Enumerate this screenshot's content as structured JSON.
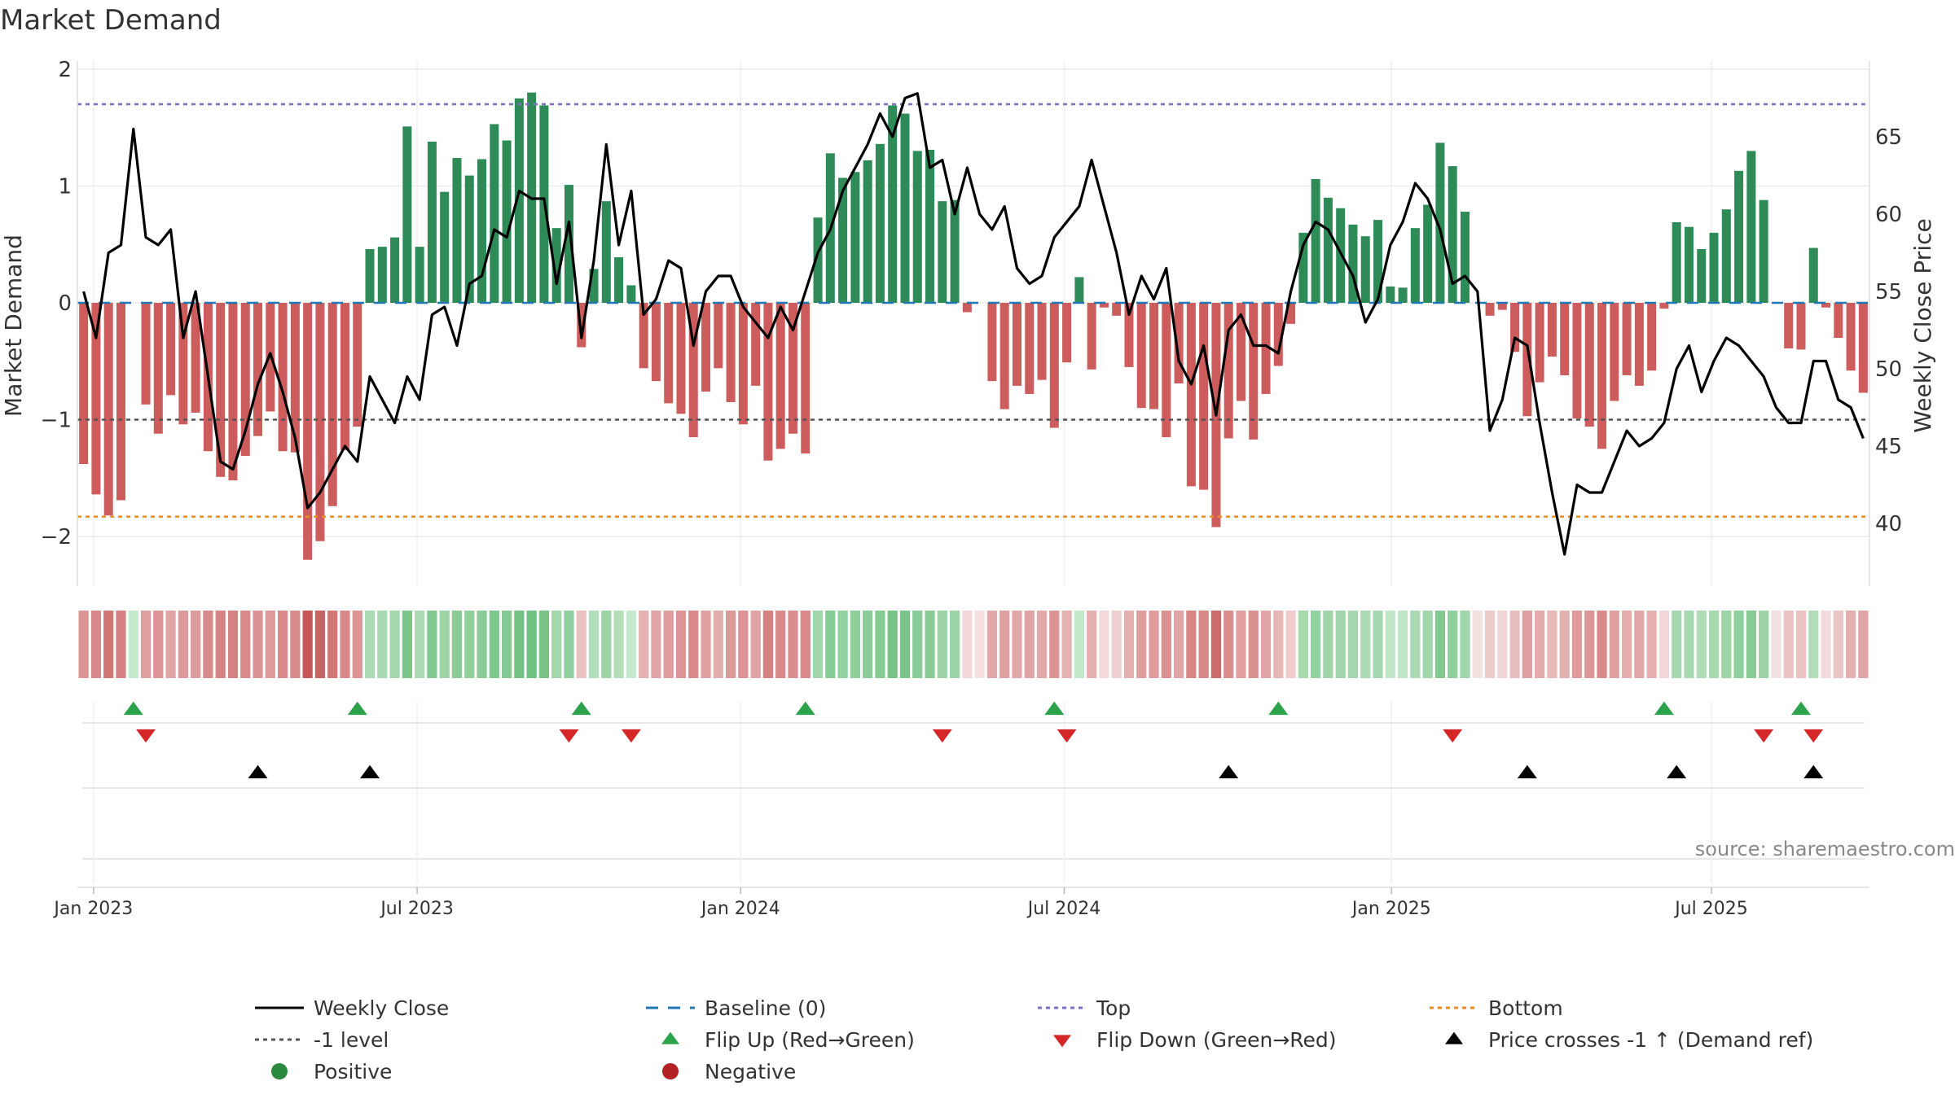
{
  "chart_data": {
    "type": "bar+line",
    "title": "Market Demand",
    "ylabel_left": "Market Demand",
    "ylabel_right": "Weekly Close Price",
    "ylim_left": [
      -2.4,
      2.0
    ],
    "ylim_right": [
      35.5,
      69
    ],
    "yticks_left": [
      {
        "v": 2,
        "label": "2"
      },
      {
        "v": 1,
        "label": "1"
      },
      {
        "v": 0,
        "label": "0"
      },
      {
        "v": -1,
        "label": "−1"
      },
      {
        "v": -2,
        "label": "−2"
      }
    ],
    "yticks_right": [
      "40",
      "45",
      "50",
      "55",
      "60",
      "65"
    ],
    "x_ticks": [
      {
        "week": 1.3,
        "label": "Jan 2023"
      },
      {
        "week": 27.3,
        "label": "Jul 2023"
      },
      {
        "week": 53.3,
        "label": "Jan 2024"
      },
      {
        "week": 79.3,
        "label": "Jul 2024"
      },
      {
        "week": 105.6,
        "label": "Jan 2025"
      },
      {
        "week": 131.3,
        "label": "Jul 2025"
      }
    ],
    "reference_lines": {
      "top": 1.7,
      "minus_one": -1.0,
      "bottom": -1.83,
      "baseline": 0
    },
    "demand": [
      -1.38,
      -1.64,
      -1.82,
      -1.69,
      0,
      -0.87,
      -1.12,
      -0.79,
      -1.04,
      -0.94,
      -1.27,
      -1.49,
      -1.52,
      -1.31,
      -1.14,
      -0.93,
      -1.27,
      -1.28,
      -2.2,
      -2.04,
      -1.74,
      -1.26,
      -1.06,
      0.46,
      0.48,
      0.56,
      1.51,
      0.48,
      1.38,
      0.95,
      1.24,
      1.09,
      1.23,
      1.53,
      1.39,
      1.75,
      1.8,
      1.69,
      0.64,
      1.01,
      -0.38,
      0.29,
      0.87,
      0.39,
      0.15,
      -0.56,
      -0.67,
      -0.86,
      -0.95,
      -1.15,
      -0.76,
      -0.56,
      -0.85,
      -1.04,
      -0.71,
      -1.35,
      -1.25,
      -1.12,
      -1.29,
      0.73,
      1.28,
      1.07,
      1.12,
      1.22,
      1.36,
      1.69,
      1.62,
      1.3,
      1.31,
      0.87,
      0.88,
      -0.08,
      0,
      -0.67,
      -0.91,
      -0.71,
      -0.78,
      -0.66,
      -1.07,
      -0.51,
      0.22,
      -0.57,
      -0.04,
      -0.11,
      -0.55,
      -0.9,
      -0.91,
      -1.15,
      -0.69,
      -1.57,
      -1.6,
      -1.92,
      -1.16,
      -0.84,
      -1.17,
      -0.78,
      -0.54,
      -0.18,
      0.6,
      1.06,
      0.9,
      0.81,
      0.67,
      0.57,
      0.71,
      0.14,
      0.13,
      0.64,
      0.84,
      1.37,
      1.17,
      0.78,
      0,
      -0.11,
      -0.06,
      -0.42,
      -0.97,
      -0.68,
      -0.46,
      -0.62,
      -0.99,
      -1.06,
      -1.25,
      -0.84,
      -0.62,
      -0.71,
      -0.58,
      -0.05,
      0.69,
      0.65,
      0.46,
      0.6,
      0.8,
      1.13,
      1.3,
      0.88,
      0,
      -0.39,
      -0.4,
      0.47,
      -0.04,
      -0.3,
      -0.58,
      -0.77
    ],
    "close": [
      55,
      52,
      57.5,
      58,
      65.5,
      58.5,
      58,
      59,
      52,
      55,
      49.5,
      44,
      43.5,
      46,
      49,
      51,
      48.5,
      45.5,
      41,
      42,
      43.5,
      45,
      44,
      49.5,
      48,
      46.5,
      49.5,
      48,
      53.5,
      54,
      51.5,
      55.5,
      56,
      59,
      58.5,
      61.5,
      61,
      61,
      55.5,
      59.5,
      52,
      57,
      64.5,
      58,
      61.5,
      53.5,
      54.5,
      57,
      56.5,
      51.5,
      55,
      56,
      56,
      54,
      53,
      52,
      54,
      52.5,
      55,
      57.5,
      59,
      61.5,
      63,
      64.5,
      66.5,
      65,
      67.5,
      67.8,
      63,
      63.5,
      60,
      63,
      60,
      59,
      60.5,
      56.5,
      55.5,
      56,
      58.5,
      59.5,
      60.5,
      63.5,
      60.5,
      57.5,
      53.5,
      56,
      54.5,
      56.5,
      50.5,
      49,
      51.5,
      47,
      52.5,
      53.5,
      51.5,
      51.5,
      51,
      55,
      58,
      59.5,
      59,
      57.5,
      56,
      53,
      54.5,
      58,
      59.5,
      62,
      61,
      59,
      55.5,
      56,
      55,
      46,
      48,
      52,
      51.5,
      46.5,
      42,
      38,
      42.5,
      42,
      42,
      44,
      46,
      45,
      45.5,
      46.5,
      50,
      51.5,
      48.5,
      50.5,
      52,
      51.5,
      50.5,
      49.5,
      47.5,
      46.5,
      46.5,
      50.5,
      50.5,
      48,
      47.5,
      45.5
    ],
    "strip_shades": [
      "#dc9595",
      "#d88888",
      "#d27777",
      "#d68181",
      "#c4e9cc",
      "#e09f9f",
      "#dc9494",
      "#e1a3a3",
      "#de9a9a",
      "#de9b9b",
      "#d98b8b",
      "#d68383",
      "#d68282",
      "#d98a8a",
      "#dc9393",
      "#de9999",
      "#d98b8b",
      "#d98b8b",
      "#c65858",
      "#c96363",
      "#d27777",
      "#d88989",
      "#dc9494",
      "#aadbb3",
      "#a9dbb2",
      "#a4d9ae",
      "#7cc68b",
      "#aadbb3",
      "#82c991",
      "#9bd4a5",
      "#89cc96",
      "#8ecf9b",
      "#89cc97",
      "#7ec78d",
      "#84c992",
      "#74c284",
      "#70c081",
      "#78c487",
      "#a3d8ad",
      "#90d09d",
      "#ebc0c0",
      "#b2dfbb",
      "#9dd4a6",
      "#b3dfbb",
      "#c5e9cc",
      "#e5b2b2",
      "#e2a5a5",
      "#df9c9c",
      "#dc9494",
      "#d98b8b",
      "#e0a1a1",
      "#e4adad",
      "#de9999",
      "#dc9393",
      "#e1a4a4",
      "#d68181",
      "#d98989",
      "#da8e8e",
      "#d98989",
      "#a1d7ab",
      "#86cb94",
      "#93d19f",
      "#8fcf9b",
      "#8bcd98",
      "#85ca93",
      "#78c487",
      "#7bc58a",
      "#89cc97",
      "#88cb96",
      "#9dd4a6",
      "#9cd4a6",
      "#f2d8d8",
      "#f5e0e0",
      "#e3a9a9",
      "#dfa0a0",
      "#e2a7a7",
      "#e1a4a4",
      "#e3aaaa",
      "#dc9595",
      "#e5b1b1",
      "#c3e8ca",
      "#e5b0b0",
      "#f3dada",
      "#efcfcf",
      "#e4afaf",
      "#df9d9d",
      "#df9c9c",
      "#db9191",
      "#e1a4a4",
      "#d78585",
      "#d88686",
      "#cc6b6b",
      "#da8f8f",
      "#e19f9f",
      "#db9090",
      "#e2a6a6",
      "#e7b6b6",
      "#efcccc",
      "#a8daaf",
      "#95d2a1",
      "#9fd5a9",
      "#a1d6ab",
      "#a5d8af",
      "#aadbb3",
      "#a4d8ae",
      "#c1e6c8",
      "#c0e6c7",
      "#a9dab1",
      "#a1d6ab",
      "#83c991",
      "#91d09d",
      "#a1d6ab",
      "#f5e0e0",
      "#efcccc",
      "#f2d5d5",
      "#e8bdbd",
      "#dea0a0",
      "#e3aaaa",
      "#e7b8b8",
      "#e4afaf",
      "#dd9b9b",
      "#dc9797",
      "#d98b8b",
      "#e0a0a0",
      "#e4adad",
      "#e2a7a7",
      "#e5b0b0",
      "#f2d8d8",
      "#a6d9b0",
      "#a8dab1",
      "#aedcb6",
      "#a7d9b0",
      "#9dd4a6",
      "#8ecf9b",
      "#86cb94",
      "#9cd4a6",
      "#f5e0e0",
      "#ebc3c3",
      "#ebc2c2",
      "#b1ddb9",
      "#f3dada",
      "#ebc5c5",
      "#e4afaf",
      "#e1a4a4"
    ],
    "flip_up_weeks": [
      4.5,
      22.5,
      40.5,
      58.5,
      78.5,
      96.5,
      127.5,
      138.5
    ],
    "flip_down_weeks": [
      5.5,
      39.5,
      44.5,
      69.5,
      79.5,
      110.5,
      135.5,
      139.5
    ],
    "price_cross_weeks": [
      14.5,
      23.5,
      92.5,
      116.5,
      128.5,
      139.5
    ],
    "source": "source: sharemaestro.com",
    "legend": [
      {
        "label": "Weekly Close",
        "kind": "line",
        "color": "#000000"
      },
      {
        "label": "Baseline (0)",
        "kind": "dash",
        "color": "#1f77b4"
      },
      {
        "label": "Top",
        "kind": "dot",
        "color": "#7b6fc4"
      },
      {
        "label": "Bottom",
        "kind": "dot",
        "color": "#ee8c1d"
      },
      {
        "label": "-1 level",
        "kind": "dot",
        "color": "#555555"
      },
      {
        "label": "Flip Up (Red→Green)",
        "kind": "tri-up",
        "color": "#2ca24a"
      },
      {
        "label": "Flip Down (Green→Red)",
        "kind": "tri-down",
        "color": "#d62728"
      },
      {
        "label": "Price crosses -1 ↑ (Demand ref)",
        "kind": "tri-up",
        "color": "#000000"
      },
      {
        "label": "Positive",
        "kind": "circle",
        "color": "#2a8a3e"
      },
      {
        "label": "Negative",
        "kind": "circle",
        "color": "#b22222"
      }
    ],
    "colors": {
      "positive_bar": "#2e8b57",
      "negative_bar": "#cd5c5c",
      "flip_up": "#2ca24a",
      "flip_down": "#d62728"
    }
  }
}
